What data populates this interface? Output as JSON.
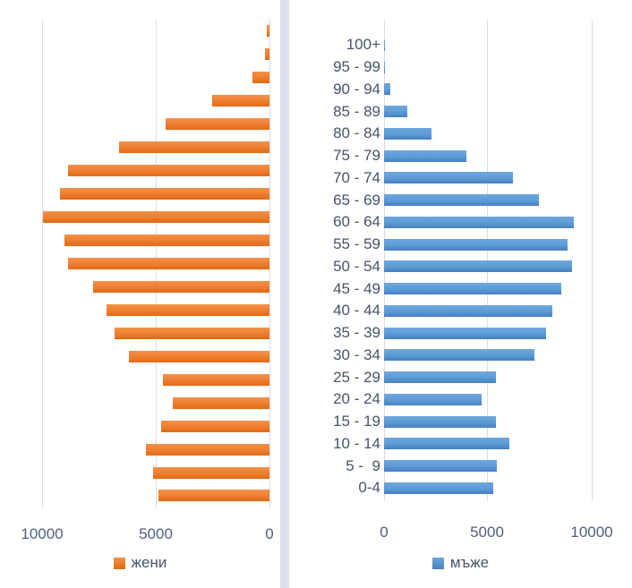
{
  "colors": {
    "women": "#ED7D31",
    "men": "#5B9BD5",
    "text": "#44546A",
    "gridline": "#D9DCE5",
    "separator": "#DCE1EC"
  },
  "chart_data": {
    "type": "bar",
    "orientation": "horizontal",
    "subtype": "population-pyramid",
    "grid": true,
    "legend_position": "bottom",
    "categories": [
      "100+",
      "95 - 99",
      "90 - 94",
      "85 - 89",
      "80 - 84",
      "75 - 79",
      "70 - 74",
      "65 - 69",
      "60 - 64",
      "55 - 59",
      "50 - 54",
      "45 - 49",
      "40 - 44",
      "35 - 39",
      "30 - 34",
      "25 - 29",
      "20 - 24",
      "15 - 19",
      "10 - 14",
      "5 -  9",
      "0-4"
    ],
    "series": [
      {
        "name": "жени",
        "side": "left",
        "color": "#ED7D31",
        "values": [
          100,
          200,
          750,
          2500,
          4550,
          6600,
          8850,
          9200,
          9950,
          9000,
          8850,
          7750,
          7150,
          6800,
          6200,
          4700,
          4250,
          4750,
          5450,
          5100,
          4900
        ]
      },
      {
        "name": "мъже",
        "side": "right",
        "color": "#5B9BD5",
        "values": [
          20,
          50,
          300,
          1100,
          2300,
          3950,
          6200,
          7450,
          9150,
          8850,
          9050,
          8550,
          8100,
          7800,
          7250,
          5400,
          4700,
          5400,
          6050,
          5450,
          5250
        ]
      }
    ],
    "x_axis": {
      "min": 0,
      "max": 10000,
      "ticks": [
        0,
        5000,
        10000
      ],
      "left_chart_reversed": true,
      "left_tick_labels": [
        "10000",
        "5000",
        "0"
      ],
      "right_tick_labels": [
        "0",
        "5000",
        "10000"
      ]
    }
  }
}
